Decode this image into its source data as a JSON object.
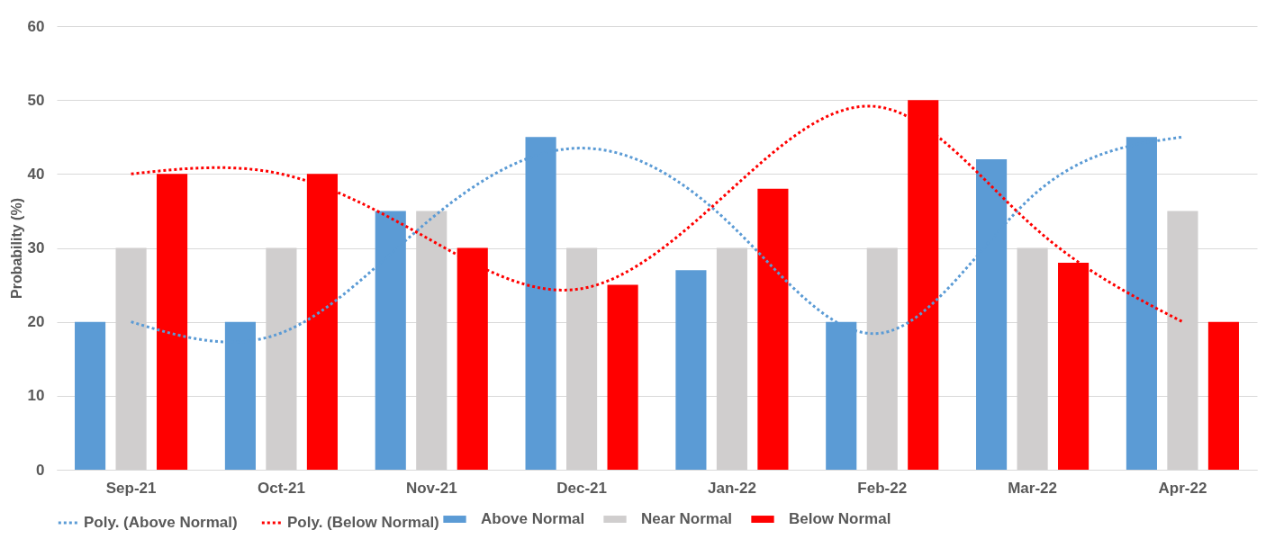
{
  "chart_data": {
    "type": "bar",
    "ylabel": "Probability (%)",
    "categories": [
      "Sep-21",
      "Oct-21",
      "Nov-21",
      "Dec-21",
      "Jan-22",
      "Feb-22",
      "Mar-22",
      "Apr-22"
    ],
    "series": [
      {
        "name": "Above Normal",
        "color": "#5b9bd5",
        "values": [
          20,
          20,
          35,
          45,
          27,
          20,
          42,
          45
        ]
      },
      {
        "name": "Near Normal",
        "color": "#d0cece",
        "values": [
          30,
          30,
          35,
          30,
          30,
          30,
          30,
          35
        ]
      },
      {
        "name": "Below Normal",
        "color": "#ff0000",
        "values": [
          40,
          40,
          30,
          25,
          38,
          50,
          28,
          20
        ]
      },
      {
        "name": "Poly. (Above Normal)",
        "type": "line",
        "line_style": "dotted",
        "color": "#5b9bd5",
        "values": [
          20,
          18.5,
          34,
          43.5,
          33,
          18.5,
          37,
          45
        ]
      },
      {
        "name": "Poly. (Below Normal)",
        "type": "line",
        "line_style": "dotted",
        "color": "#ff0000",
        "values": [
          40,
          40,
          31,
          24.5,
          38,
          49,
          33,
          20
        ]
      }
    ],
    "ylim": [
      0,
      60
    ],
    "yticks": [
      0,
      10,
      20,
      30,
      40,
      50,
      60
    ],
    "grid": "y",
    "legend": "bottom"
  }
}
